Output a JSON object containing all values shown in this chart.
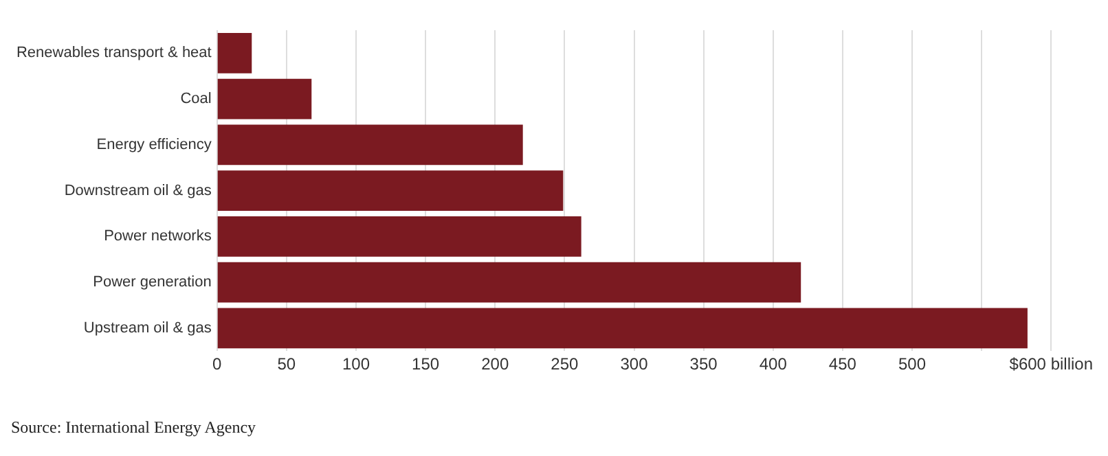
{
  "chart_data": {
    "type": "bar",
    "orientation": "horizontal",
    "categories": [
      "Renewables transport & heat",
      "Coal",
      "Energy efficiency",
      "Downstream oil & gas",
      "Power networks",
      "Power generation",
      "Upstream oil & gas"
    ],
    "values": [
      25,
      68,
      220,
      249,
      262,
      420,
      583
    ],
    "color": "#7b1a21",
    "xlim": [
      0,
      600
    ],
    "xticks": [
      0,
      50,
      100,
      150,
      200,
      250,
      300,
      350,
      400,
      450,
      500,
      {
        "value": 550,
        "label": null
      },
      {
        "value": 600,
        "label": "$600 billion"
      }
    ],
    "grid": "x",
    "annotations": [
      "Source: International Energy Agency"
    ]
  }
}
